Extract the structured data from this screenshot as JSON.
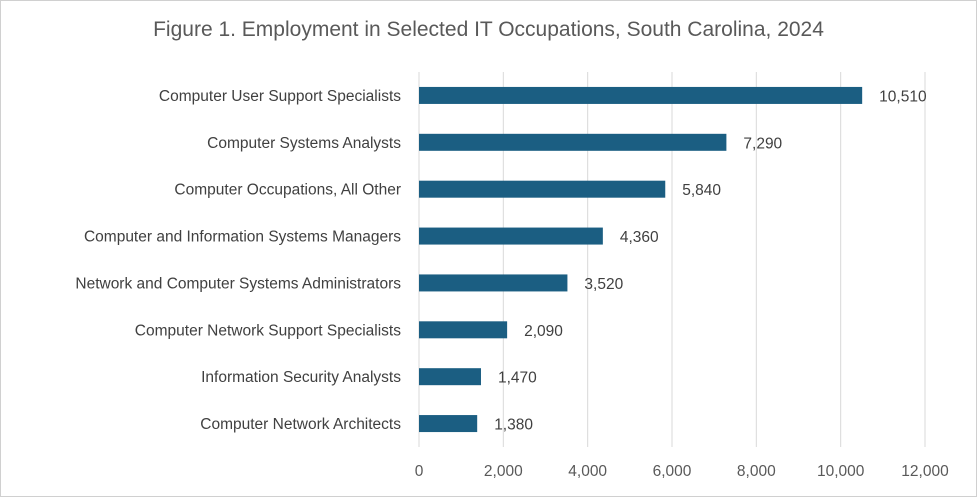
{
  "chart_data": {
    "type": "bar",
    "orientation": "horizontal",
    "title": "Figure 1. Employment in Selected IT Occupations, South Carolina, 2024",
    "categories": [
      "Computer User Support Specialists",
      "Computer Systems Analysts",
      "Computer Occupations, All Other",
      "Computer and Information Systems Managers",
      "Network and Computer Systems Administrators",
      "Computer Network Support Specialists",
      "Information Security Analysts",
      "Computer Network Architects"
    ],
    "values": [
      10510,
      7290,
      5840,
      4360,
      3520,
      2090,
      1470,
      1380
    ],
    "data_labels": [
      "10,510",
      "7,290",
      "5,840",
      "4,360",
      "3,520",
      "2,090",
      "1,470",
      "1,380"
    ],
    "xlim": [
      0,
      12000
    ],
    "xticks": [
      0,
      2000,
      4000,
      6000,
      8000,
      10000,
      12000
    ],
    "xtick_labels": [
      "0",
      "2,000",
      "4,000",
      "6,000",
      "8,000",
      "10,000",
      "12,000"
    ],
    "grid": "vertical",
    "legend": "none",
    "bar_color": "#1b5e82",
    "gridline_color": "#d9d9d9"
  }
}
